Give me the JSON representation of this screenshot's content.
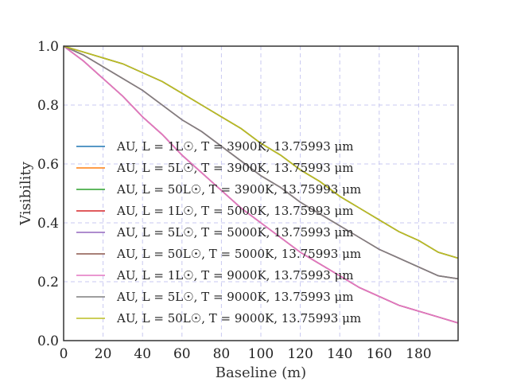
{
  "chart_data": {
    "type": "line",
    "xlabel": "Baseline (m)",
    "ylabel": "Visibility",
    "xlim": [
      0,
      200
    ],
    "ylim": [
      0,
      1.0
    ],
    "x_ticks": [
      0,
      20,
      40,
      60,
      80,
      100,
      120,
      140,
      160,
      180
    ],
    "y_ticks": [
      0.0,
      0.2,
      0.4,
      0.6,
      0.8,
      1.0
    ],
    "x_tick_labels": [
      "0",
      "20",
      "40",
      "60",
      "80",
      "100",
      "120",
      "140",
      "160",
      "180"
    ],
    "y_tick_labels": [
      "0.0",
      "0.2",
      "0.4",
      "0.6",
      "0.8",
      "1.0"
    ],
    "grid": true,
    "legend_position": "left",
    "x": [
      0,
      10,
      20,
      30,
      40,
      50,
      60,
      70,
      80,
      90,
      100,
      110,
      120,
      130,
      140,
      150,
      160,
      170,
      180,
      190,
      200
    ],
    "series": [
      {
        "name": "AU, L = 1L☉, T = 3900K, 13.75993 μm",
        "color": "#1f77b4",
        "values": [
          1.0,
          0.95,
          0.89,
          0.83,
          0.76,
          0.7,
          0.63,
          0.57,
          0.51,
          0.45,
          0.4,
          0.35,
          0.3,
          0.26,
          0.22,
          0.18,
          0.15,
          0.12,
          0.1,
          0.08,
          0.06
        ]
      },
      {
        "name": "AU, L = 5L☉, T = 3900K, 13.75993 μm",
        "color": "#ff7f0e",
        "values": [
          1.0,
          0.97,
          0.93,
          0.89,
          0.85,
          0.8,
          0.75,
          0.71,
          0.66,
          0.61,
          0.56,
          0.52,
          0.47,
          0.43,
          0.39,
          0.35,
          0.31,
          0.28,
          0.25,
          0.22,
          0.21
        ]
      },
      {
        "name": "AU, L = 50L☉, T = 3900K, 13.75993 μm",
        "color": "#2ca02c",
        "values": [
          1.0,
          0.98,
          0.96,
          0.94,
          0.91,
          0.88,
          0.84,
          0.8,
          0.76,
          0.72,
          0.67,
          0.63,
          0.58,
          0.54,
          0.49,
          0.45,
          0.41,
          0.37,
          0.34,
          0.3,
          0.28
        ]
      },
      {
        "name": "AU, L = 1L☉, T = 5000K, 13.75993 μm",
        "color": "#d62728",
        "values": [
          1.0,
          0.95,
          0.89,
          0.83,
          0.76,
          0.7,
          0.63,
          0.57,
          0.51,
          0.45,
          0.4,
          0.35,
          0.3,
          0.26,
          0.22,
          0.18,
          0.15,
          0.12,
          0.1,
          0.08,
          0.06
        ]
      },
      {
        "name": "AU, L = 5L☉, T = 5000K, 13.75993 μm",
        "color": "#9467bd",
        "values": [
          1.0,
          0.97,
          0.93,
          0.89,
          0.85,
          0.8,
          0.75,
          0.71,
          0.66,
          0.61,
          0.56,
          0.52,
          0.47,
          0.43,
          0.39,
          0.35,
          0.31,
          0.28,
          0.25,
          0.22,
          0.21
        ]
      },
      {
        "name": "AU, L = 50L☉, T = 5000K, 13.75993 μm",
        "color": "#8c564b",
        "values": [
          1.0,
          0.98,
          0.96,
          0.94,
          0.91,
          0.88,
          0.84,
          0.8,
          0.76,
          0.72,
          0.67,
          0.63,
          0.58,
          0.54,
          0.49,
          0.45,
          0.41,
          0.37,
          0.34,
          0.3,
          0.28
        ]
      },
      {
        "name": "AU, L = 1L☉, T = 9000K, 13.75993 μm",
        "color": "#e377c2",
        "values": [
          1.0,
          0.95,
          0.89,
          0.83,
          0.76,
          0.7,
          0.63,
          0.57,
          0.51,
          0.45,
          0.4,
          0.35,
          0.3,
          0.26,
          0.22,
          0.18,
          0.15,
          0.12,
          0.1,
          0.08,
          0.06
        ]
      },
      {
        "name": "AU, L = 5L☉, T = 9000K, 13.75993 μm",
        "color": "#7f7f7f",
        "values": [
          1.0,
          0.97,
          0.93,
          0.89,
          0.85,
          0.8,
          0.75,
          0.71,
          0.66,
          0.61,
          0.56,
          0.52,
          0.47,
          0.43,
          0.39,
          0.35,
          0.31,
          0.28,
          0.25,
          0.22,
          0.21
        ]
      },
      {
        "name": "AU, L = 50L☉, T = 9000K, 13.75993 μm",
        "color": "#bcbd22",
        "values": [
          1.0,
          0.98,
          0.96,
          0.94,
          0.91,
          0.88,
          0.84,
          0.8,
          0.76,
          0.72,
          0.67,
          0.63,
          0.58,
          0.54,
          0.49,
          0.45,
          0.41,
          0.37,
          0.34,
          0.3,
          0.28
        ]
      }
    ]
  }
}
